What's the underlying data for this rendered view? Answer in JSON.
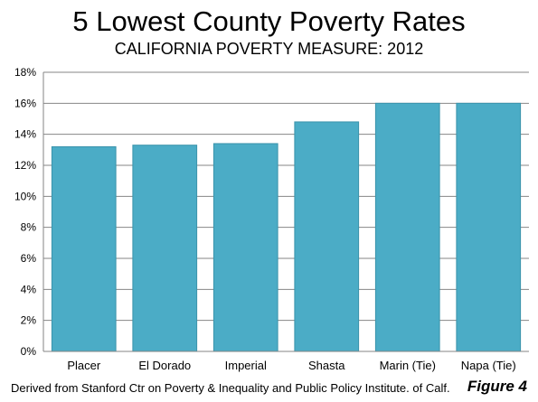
{
  "chart_data": {
    "type": "bar",
    "title": "5 Lowest County Poverty Rates",
    "subtitle": "CALIFORNIA POVERTY MEASURE: 2012",
    "categories": [
      "Placer",
      "El Dorado",
      "Imperial",
      "Shasta",
      "Marin (Tie)",
      "Napa (Tie)"
    ],
    "values": [
      13.2,
      13.3,
      13.4,
      14.8,
      16.0,
      16.0
    ],
    "ylim": [
      0,
      18
    ],
    "yticks": [
      0,
      2,
      4,
      6,
      8,
      10,
      12,
      14,
      16,
      18
    ],
    "ytick_labels": [
      "0%",
      "2%",
      "4%",
      "6%",
      "8%",
      "10%",
      "12%",
      "14%",
      "16%",
      "18%"
    ],
    "grid": true,
    "colors": {
      "bar": "#4bacc6",
      "bar_stroke": "#3a93ab",
      "grid": "#868686",
      "axis": "#868686"
    }
  },
  "footer": {
    "source": "Derived from Stanford Ctr on Poverty & Inequality and Public Policy Institute. of Calf.",
    "figure": "Figure 4"
  }
}
